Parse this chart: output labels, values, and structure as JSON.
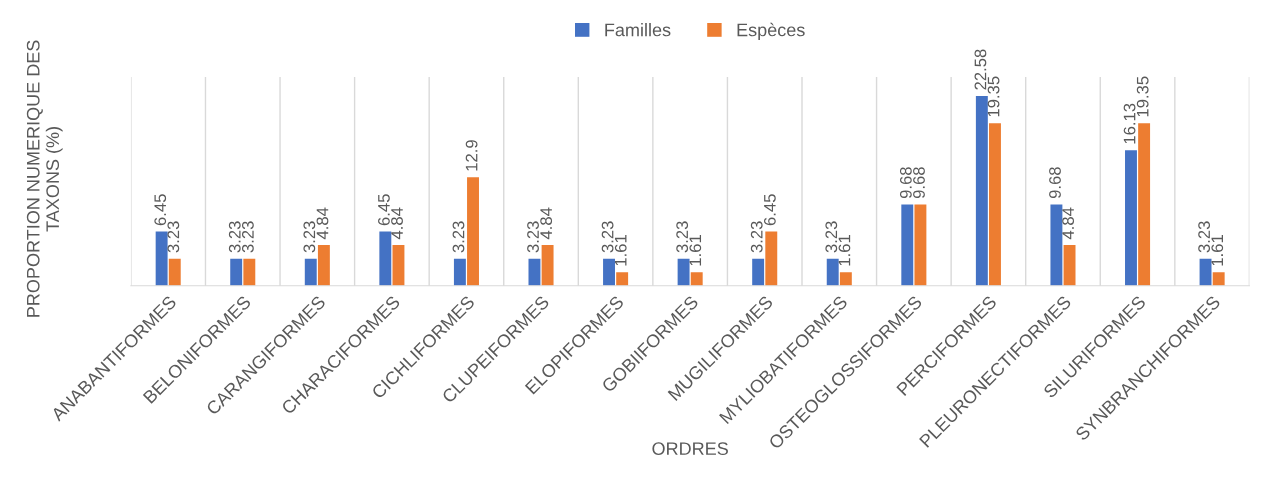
{
  "chart_data": {
    "type": "bar",
    "xlabel": "ORDRES",
    "ylabel": "PROPORTION NUMERIQUE DES TAXONS (%)",
    "categories": [
      "ANABANTIFORMES",
      "BELONIFORMES",
      "CARANGIFORMES",
      "CHARACIFORMES",
      "CICHLIFORMES",
      "CLUPEIFORMES",
      "ELOPIFORMES",
      "GOBIIFORMES",
      "MUGILIFORMES",
      "MYLIOBATIFORMES",
      "OSTEOGLOSSIFORMES",
      "PERCIFORMES",
      "PLEURONECTIFORMES",
      "SILURIFORMES",
      "SYNBRANCHIFORMES"
    ],
    "series": [
      {
        "name": "Familles",
        "color": "#4472c4",
        "values": [
          6.45,
          3.23,
          3.23,
          6.45,
          3.23,
          3.23,
          3.23,
          3.23,
          3.23,
          3.23,
          9.68,
          22.58,
          9.68,
          16.13,
          3.23
        ]
      },
      {
        "name": "Espèces",
        "color": "#ed7d31",
        "values": [
          3.23,
          3.23,
          4.84,
          4.84,
          12.9,
          4.84,
          1.61,
          1.61,
          6.45,
          1.61,
          9.68,
          19.35,
          4.84,
          19.35,
          1.61
        ]
      }
    ],
    "data_labels": true,
    "grid": "x",
    "legend": "top",
    "relative": false
  }
}
